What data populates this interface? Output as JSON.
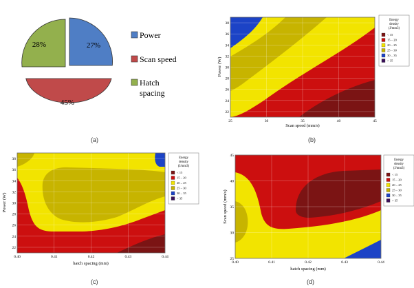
{
  "palette": {
    "c1": "#7b1414",
    "c2": "#cc0f0f",
    "c3": "#f2e400",
    "c4": "#c7b400",
    "c5": "#1c43c6",
    "c6": "#3a1059",
    "pie_power": "#4f7ec5",
    "pie_scan": "#c04a4a",
    "pie_hatch": "#93b04d"
  },
  "chart_data": [
    {
      "type": "pie",
      "caption": "(a)",
      "slices": [
        {
          "name": "Power",
          "value": 27,
          "label": "27%"
        },
        {
          "name": "Scan speed",
          "value": 45,
          "label": "45%"
        },
        {
          "name": "Hatch spacing",
          "value": 28,
          "label": "28%"
        }
      ],
      "legend": [
        "Power",
        "Scan speed",
        "Hatch",
        "spacing"
      ],
      "legend_position": "right"
    },
    {
      "type": "heatmap",
      "caption": "(b)",
      "xlabel": "Scan speed (mm/s)",
      "ylabel": "Power (W)",
      "xlim": [
        25,
        45
      ],
      "ylim": [
        21,
        39
      ],
      "xticks": [
        "25",
        "30",
        "35",
        "40",
        "45"
      ],
      "yticks": [
        "22",
        "24",
        "26",
        "28",
        "30",
        "32",
        "34",
        "36",
        "38"
      ],
      "legend_title": [
        "Energy",
        "density",
        "(J/mm3)"
      ],
      "legend_items": [
        "< 15",
        "15 – 20",
        "20 – 25",
        "25 – 30",
        "30 – 35",
        "> 35"
      ],
      "legend_position": "right",
      "grid": true
    },
    {
      "type": "heatmap",
      "caption": "(c)",
      "xlabel": "hatch spacing (mm)",
      "ylabel": "Power (W)",
      "xlim": [
        0.4,
        0.44
      ],
      "ylim": [
        21,
        39
      ],
      "xticks": [
        "0.40",
        "0.41",
        "0.42",
        "0.43",
        "0.44"
      ],
      "yticks": [
        "22",
        "24",
        "26",
        "28",
        "30",
        "32",
        "34",
        "36",
        "38"
      ],
      "legend_title": [
        "Energy",
        "density",
        "(J/mm3)"
      ],
      "legend_items": [
        "< 15",
        "15 – 20",
        "20 – 25",
        "25 – 30",
        "30 – 35",
        "> 35"
      ],
      "legend_position": "right",
      "grid": true
    },
    {
      "type": "heatmap",
      "caption": "(d)",
      "xlabel": "hatch spacing (mm)",
      "ylabel": "Scan speed (mm/s)",
      "xlim": [
        0.4,
        0.44
      ],
      "ylim": [
        25,
        45
      ],
      "xticks": [
        "0.40",
        "0.41",
        "0.42",
        "0.43",
        "0.44"
      ],
      "yticks": [
        "25",
        "30",
        "35",
        "40",
        "45"
      ],
      "legend_title": [
        "Energy",
        "density",
        "(J/mm3)"
      ],
      "legend_items": [
        "< 15",
        "15 – 20",
        "20 – 25",
        "25 – 30",
        "30 – 35",
        "> 35"
      ],
      "legend_position": "right",
      "grid": true
    }
  ]
}
